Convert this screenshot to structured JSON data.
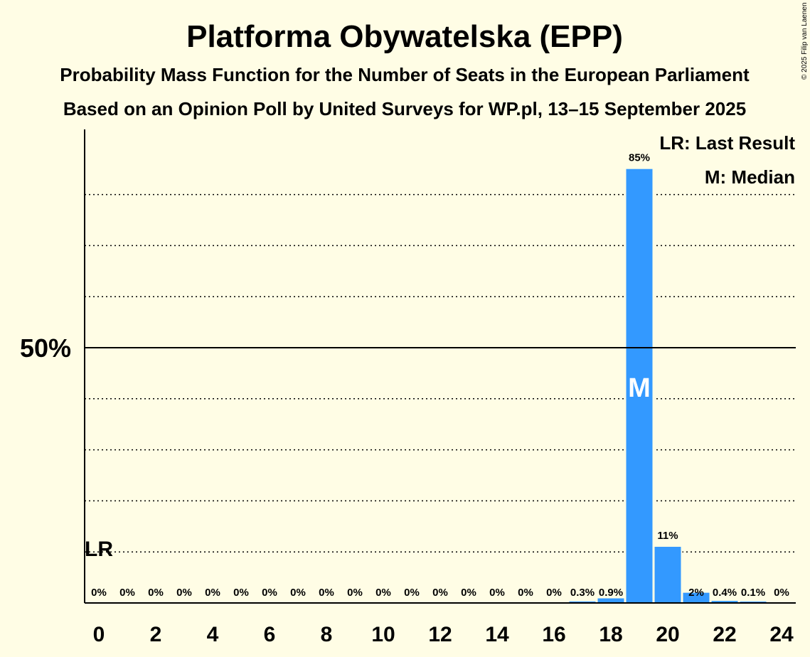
{
  "chart_data": {
    "type": "bar",
    "title": "Platforma Obywatelska (EPP)",
    "subtitle1": "Probability Mass Function for the Number of Seats in the European Parliament",
    "subtitle2": "Based on an Opinion Poll by United Surveys for WP.pl, 13–15 September 2025",
    "copyright": "© 2025 Filip van Laenen",
    "legend": {
      "last_result": "LR: Last Result",
      "median": "M: Median"
    },
    "x": [
      0,
      1,
      2,
      3,
      4,
      5,
      6,
      7,
      8,
      9,
      10,
      11,
      12,
      13,
      14,
      15,
      16,
      17,
      18,
      19,
      20,
      21,
      22,
      23,
      24
    ],
    "values": [
      0,
      0,
      0,
      0,
      0,
      0,
      0,
      0,
      0,
      0,
      0,
      0,
      0,
      0,
      0,
      0,
      0,
      0.3,
      0.9,
      85,
      11,
      2,
      0.4,
      0.1,
      0
    ],
    "value_labels": [
      "0%",
      "0%",
      "0%",
      "0%",
      "0%",
      "0%",
      "0%",
      "0%",
      "0%",
      "0%",
      "0%",
      "0%",
      "0%",
      "0%",
      "0%",
      "0%",
      "0%",
      "0.3%",
      "0.9%",
      "85%",
      "11%",
      "2%",
      "0.4%",
      "0.1%",
      "0%"
    ],
    "x_tick_labels": [
      "0",
      "2",
      "4",
      "6",
      "8",
      "10",
      "12",
      "14",
      "16",
      "18",
      "20",
      "22",
      "24"
    ],
    "x_tick_values": [
      0,
      2,
      4,
      6,
      8,
      10,
      12,
      14,
      16,
      18,
      20,
      22,
      24
    ],
    "y_tick_label": "50%",
    "y_tick_value": 50,
    "ylim": [
      0,
      93
    ],
    "gridlines": [
      10,
      20,
      30,
      40,
      60,
      70,
      80
    ],
    "last_result_seat": 0,
    "last_result_label": "LR",
    "median_seat": 19,
    "median_label": "M",
    "bar_color": "#3399FF"
  }
}
